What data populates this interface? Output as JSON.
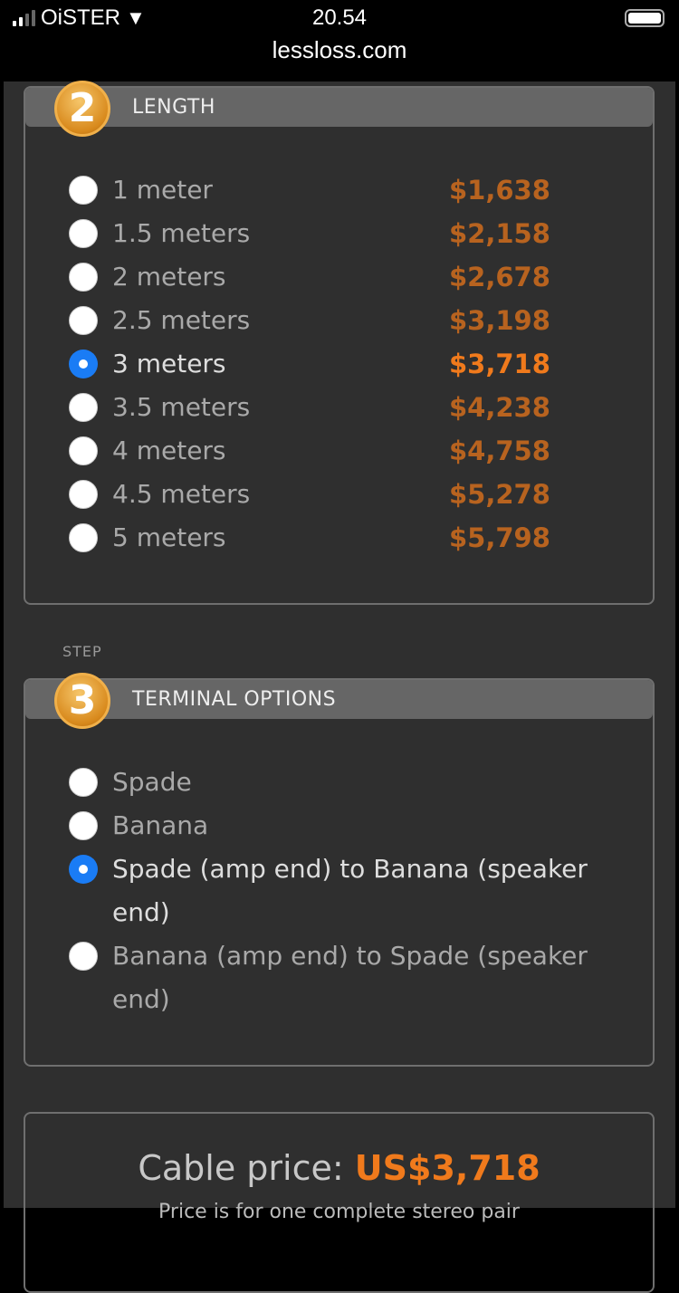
{
  "status_bar": {
    "carrier": "OiSTER",
    "time": "20.54",
    "url": "lessloss.com",
    "signal_bars": 2,
    "battery_level": 1.0
  },
  "length_step": {
    "number": "2",
    "title": "LENGTH",
    "options": [
      {
        "label": "1 meter",
        "price": "$1,638",
        "selected": false
      },
      {
        "label": "1.5 meters",
        "price": "$2,158",
        "selected": false
      },
      {
        "label": "2 meters",
        "price": "$2,678",
        "selected": false
      },
      {
        "label": "2.5 meters",
        "price": "$3,198",
        "selected": false
      },
      {
        "label": "3 meters",
        "price": "$3,718",
        "selected": true
      },
      {
        "label": "3.5 meters",
        "price": "$4,238",
        "selected": false
      },
      {
        "label": "4 meters",
        "price": "$4,758",
        "selected": false
      },
      {
        "label": "4.5 meters",
        "price": "$5,278",
        "selected": false
      },
      {
        "label": "5 meters",
        "price": "$5,798",
        "selected": false
      }
    ]
  },
  "terminal_step": {
    "step_label": "STEP",
    "number": "3",
    "title": "TERMINAL OPTIONS",
    "options": [
      {
        "label": "Spade",
        "selected": false
      },
      {
        "label": "Banana",
        "selected": false
      },
      {
        "label": "Spade (amp end) to Banana (speaker end)",
        "selected": true
      },
      {
        "label": "Banana (amp end) to Spade (speaker end)",
        "selected": false
      }
    ]
  },
  "summary": {
    "label": "Cable price:",
    "price": "US$3,718",
    "note": "Price is for one complete stereo pair"
  },
  "colors": {
    "accent_orange": "#f07a1c",
    "radio_selected": "#1a7cf5"
  }
}
